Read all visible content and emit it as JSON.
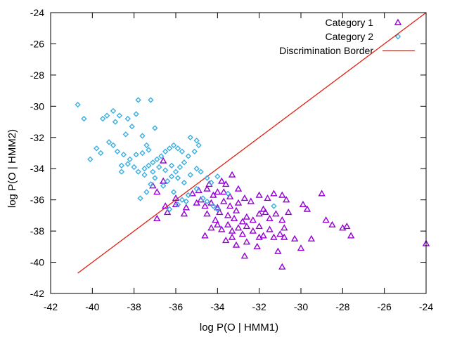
{
  "chart_data": {
    "type": "scatter",
    "title": "",
    "xlabel": "log P(O | HMM1)",
    "ylabel": "log P(O | HMM2)",
    "xlim": [
      -42,
      -24
    ],
    "ylim": [
      -42,
      -24
    ],
    "xticks": [
      -42,
      -40,
      -38,
      -36,
      -34,
      -32,
      -30,
      -28,
      -26,
      -24
    ],
    "yticks": [
      -42,
      -40,
      -38,
      -36,
      -34,
      -32,
      -30,
      -28,
      -26,
      -24
    ],
    "grid": false,
    "legend_position": "top-right",
    "series": [
      {
        "name": "Category 1",
        "marker": "triangle",
        "color": "#9400d3",
        "points": [
          [
            -36.6,
            -33.5
          ],
          [
            -36.6,
            -34.8
          ],
          [
            -36.9,
            -35.5
          ],
          [
            -37.1,
            -35.1
          ],
          [
            -36.0,
            -35.9
          ],
          [
            -36.0,
            -36.3
          ],
          [
            -35.6,
            -36.9
          ],
          [
            -35.5,
            -36.5
          ],
          [
            -35.0,
            -36.2
          ],
          [
            -36.4,
            -36.8
          ],
          [
            -36.9,
            -37.2
          ],
          [
            -36.5,
            -36.4
          ],
          [
            -35.2,
            -35.6
          ],
          [
            -34.9,
            -35.4
          ],
          [
            -34.5,
            -35.3
          ],
          [
            -34.4,
            -35.0
          ],
          [
            -34.0,
            -35.5
          ],
          [
            -33.8,
            -34.8
          ],
          [
            -33.6,
            -35.0
          ],
          [
            -33.3,
            -34.4
          ],
          [
            -33.0,
            -35.3
          ],
          [
            -34.2,
            -35.7
          ],
          [
            -33.7,
            -35.5
          ],
          [
            -33.4,
            -35.8
          ],
          [
            -34.8,
            -36.0
          ],
          [
            -34.6,
            -36.4
          ],
          [
            -34.3,
            -36.2
          ],
          [
            -34.0,
            -36.5
          ],
          [
            -33.7,
            -36.1
          ],
          [
            -33.4,
            -36.4
          ],
          [
            -33.0,
            -36.2
          ],
          [
            -32.7,
            -35.9
          ],
          [
            -32.4,
            -36.1
          ],
          [
            -32.0,
            -35.7
          ],
          [
            -31.6,
            -35.9
          ],
          [
            -31.3,
            -35.6
          ],
          [
            -30.9,
            -35.7
          ],
          [
            -30.7,
            -36.0
          ],
          [
            -29.9,
            -36.3
          ],
          [
            -29.7,
            -36.6
          ],
          [
            -29.0,
            -35.6
          ],
          [
            -34.5,
            -36.9
          ],
          [
            -34.1,
            -37.3
          ],
          [
            -33.9,
            -36.8
          ],
          [
            -33.5,
            -37.0
          ],
          [
            -33.2,
            -37.2
          ],
          [
            -33.1,
            -36.7
          ],
          [
            -32.8,
            -37.4
          ],
          [
            -32.6,
            -37.1
          ],
          [
            -32.3,
            -37.3
          ],
          [
            -32.0,
            -36.9
          ],
          [
            -31.8,
            -36.6
          ],
          [
            -31.5,
            -37.2
          ],
          [
            -31.2,
            -36.9
          ],
          [
            -30.9,
            -37.3
          ],
          [
            -30.6,
            -36.8
          ],
          [
            -34.0,
            -37.6
          ],
          [
            -33.8,
            -37.9
          ],
          [
            -33.5,
            -37.6
          ],
          [
            -33.3,
            -38.0
          ],
          [
            -33.0,
            -37.8
          ],
          [
            -32.8,
            -38.2
          ],
          [
            -32.6,
            -37.7
          ],
          [
            -32.3,
            -38.0
          ],
          [
            -32.0,
            -37.7
          ],
          [
            -31.8,
            -38.3
          ],
          [
            -31.5,
            -37.9
          ],
          [
            -31.3,
            -38.4
          ],
          [
            -31.0,
            -38.2
          ],
          [
            -30.8,
            -37.8
          ],
          [
            -34.3,
            -37.8
          ],
          [
            -34.6,
            -38.3
          ],
          [
            -33.6,
            -38.6
          ],
          [
            -33.1,
            -38.9
          ],
          [
            -32.6,
            -38.7
          ],
          [
            -32.1,
            -39.0
          ],
          [
            -32.0,
            -38.4
          ],
          [
            -31.1,
            -39.3
          ],
          [
            -30.8,
            -38.4
          ],
          [
            -30.3,
            -38.5
          ],
          [
            -30.0,
            -39.1
          ],
          [
            -29.5,
            -38.5
          ],
          [
            -28.8,
            -37.3
          ],
          [
            -28.5,
            -37.6
          ],
          [
            -28.0,
            -37.8
          ],
          [
            -27.8,
            -37.7
          ],
          [
            -27.6,
            -38.3
          ],
          [
            -24.0,
            -38.8
          ],
          [
            -30.9,
            -40.3
          ],
          [
            -32.7,
            -39.6
          ],
          [
            -33.3,
            -38.4
          ],
          [
            -31.7,
            -36.8
          ]
        ]
      },
      {
        "name": "Category 2",
        "marker": "diamond",
        "color": "#3bb0e0",
        "points": [
          [
            -40.7,
            -29.9
          ],
          [
            -40.4,
            -30.8
          ],
          [
            -40.1,
            -33.4
          ],
          [
            -39.5,
            -30.8
          ],
          [
            -39.3,
            -30.6
          ],
          [
            -39.0,
            -30.3
          ],
          [
            -39.6,
            -33.0
          ],
          [
            -39.2,
            -32.3
          ],
          [
            -39.0,
            -32.5
          ],
          [
            -38.8,
            -32.9
          ],
          [
            -38.6,
            -33.8
          ],
          [
            -38.5,
            -33.1
          ],
          [
            -38.3,
            -30.8
          ],
          [
            -38.1,
            -31.3
          ],
          [
            -37.8,
            -29.6
          ],
          [
            -37.6,
            -31.9
          ],
          [
            -37.4,
            -32.5
          ],
          [
            -37.2,
            -29.6
          ],
          [
            -37.0,
            -31.4
          ],
          [
            -37.3,
            -32.8
          ],
          [
            -37.6,
            -33.0
          ],
          [
            -37.9,
            -33.1
          ],
          [
            -38.2,
            -33.4
          ],
          [
            -38.3,
            -33.7
          ],
          [
            -38.0,
            -33.9
          ],
          [
            -37.8,
            -34.2
          ],
          [
            -37.5,
            -34.0
          ],
          [
            -37.3,
            -33.8
          ],
          [
            -37.1,
            -33.6
          ],
          [
            -36.9,
            -33.4
          ],
          [
            -36.7,
            -33.2
          ],
          [
            -36.5,
            -32.9
          ],
          [
            -36.3,
            -32.7
          ],
          [
            -36.1,
            -32.5
          ],
          [
            -35.9,
            -32.7
          ],
          [
            -35.7,
            -32.9
          ],
          [
            -35.3,
            -32.0
          ],
          [
            -35.0,
            -32.2
          ],
          [
            -34.9,
            -32.5
          ],
          [
            -35.1,
            -32.9
          ],
          [
            -35.4,
            -33.2
          ],
          [
            -35.6,
            -33.6
          ],
          [
            -35.8,
            -33.9
          ],
          [
            -36.0,
            -34.2
          ],
          [
            -36.2,
            -34.5
          ],
          [
            -36.4,
            -34.8
          ],
          [
            -36.6,
            -35.1
          ],
          [
            -37.0,
            -34.6
          ],
          [
            -37.2,
            -35.0
          ],
          [
            -37.5,
            -34.4
          ],
          [
            -37.7,
            -35.9
          ],
          [
            -37.4,
            -35.5
          ],
          [
            -37.1,
            -34.2
          ],
          [
            -36.8,
            -33.9
          ],
          [
            -36.5,
            -34.1
          ],
          [
            -36.2,
            -33.8
          ],
          [
            -35.9,
            -34.6
          ],
          [
            -35.6,
            -34.9
          ],
          [
            -35.3,
            -34.4
          ],
          [
            -35.0,
            -34.0
          ],
          [
            -34.8,
            -34.2
          ],
          [
            -34.5,
            -34.6
          ],
          [
            -34.3,
            -34.9
          ],
          [
            -34.0,
            -34.5
          ],
          [
            -35.4,
            -35.7
          ],
          [
            -35.7,
            -36.0
          ],
          [
            -36.1,
            -35.5
          ],
          [
            -35.9,
            -36.3
          ],
          [
            -36.3,
            -36.6
          ],
          [
            -35.5,
            -36.1
          ],
          [
            -35.0,
            -35.3
          ],
          [
            -34.7,
            -35.9
          ],
          [
            -34.5,
            -36.1
          ],
          [
            -34.2,
            -36.4
          ],
          [
            -34.0,
            -36.6
          ],
          [
            -33.5,
            -35.6
          ],
          [
            -31.3,
            -36.4
          ],
          [
            -38.7,
            -30.6
          ],
          [
            -39.8,
            -32.7
          ],
          [
            -38.9,
            -31.0
          ],
          [
            -37.9,
            -30.5
          ],
          [
            -38.6,
            -34.2
          ],
          [
            -38.4,
            -31.8
          ]
        ]
      },
      {
        "name": "Discrimination Border",
        "marker": "line",
        "color": "#e02010",
        "points": [
          [
            -40.7,
            -40.7
          ],
          [
            -24.0,
            -24.0
          ]
        ]
      }
    ]
  }
}
